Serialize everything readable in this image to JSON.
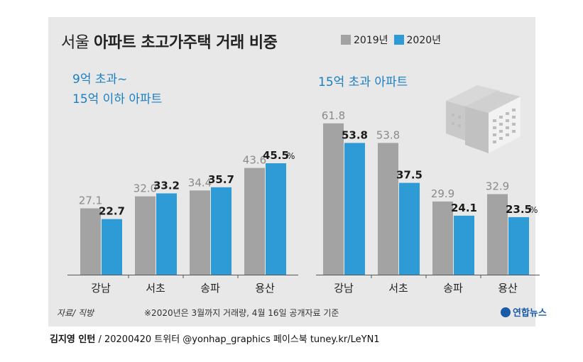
{
  "title_light": "서울",
  "title_bold": "아파트 초고가주택 거래 비중",
  "legend": {
    "y2019": "2019년",
    "y2020": "2020년"
  },
  "colors": {
    "y2019": "#a3a3a3",
    "y2020": "#2f9bd6",
    "subtitle": "#1a7fc1"
  },
  "left_subtitle_line1": "9억 초과~",
  "left_subtitle_line2": "15억 이하 아파트",
  "right_subtitle": "15억 초과 아파트",
  "unit": "%",
  "footnote_source": "자료/ 직방",
  "footnote_note": "※2020년은 3월까지 거래량, 4월 16일 공개자료 기준",
  "logo_text": "연합뉴스",
  "credit_name": "김지영 인턴",
  "credit_rest": "/ 20200420 트위터 @yonhap_graphics 페이스북 tuney.kr/LeYN1",
  "icon": "apartment-building-icon",
  "chart_data": [
    {
      "type": "bar",
      "title": "9억 초과~ 15억 이하 아파트",
      "categories": [
        "강남",
        "서초",
        "송파",
        "용산"
      ],
      "series": [
        {
          "name": "2019년",
          "values": [
            27.1,
            32.0,
            34.4,
            43.6
          ]
        },
        {
          "name": "2020년",
          "values": [
            22.7,
            33.2,
            35.7,
            45.5
          ]
        }
      ],
      "value_labels": {
        "2019년": [
          "27.1",
          "32.0",
          "34.4",
          "43.6"
        ],
        "2020년": [
          "22.7",
          "33.2",
          "35.7",
          "45.5"
        ]
      },
      "ylim": [
        0,
        65
      ],
      "unit": "%",
      "grid": false,
      "legend": "top-right"
    },
    {
      "type": "bar",
      "title": "15억 초과 아파트",
      "categories": [
        "강남",
        "서초",
        "송파",
        "용산"
      ],
      "series": [
        {
          "name": "2019년",
          "values": [
            61.8,
            53.8,
            29.9,
            32.9
          ]
        },
        {
          "name": "2020년",
          "values": [
            53.8,
            37.5,
            24.1,
            23.5
          ]
        }
      ],
      "value_labels": {
        "2019년": [
          "61.8",
          "53.8",
          "29.9",
          "32.9"
        ],
        "2020년": [
          "53.8",
          "37.5",
          "24.1",
          "23.5"
        ]
      },
      "ylim": [
        0,
        65
      ],
      "unit": "%",
      "grid": false,
      "legend": "top-right"
    }
  ]
}
